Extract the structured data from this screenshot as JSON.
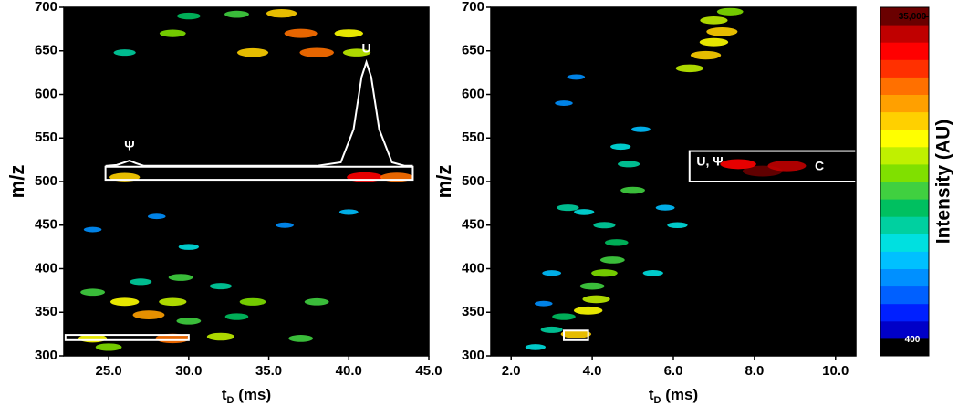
{
  "chart_data": [
    {
      "type": "scatter",
      "ylabel": "m/z",
      "xlabel": [
        "t",
        "D",
        " (ms)"
      ],
      "xlim": [
        22.2,
        45
      ],
      "ylim": [
        300,
        700
      ],
      "xticks": [
        {
          "value": 25,
          "label": "25.0"
        },
        {
          "value": 30,
          "label": "30.0"
        },
        {
          "value": 35,
          "label": "35.0"
        },
        {
          "value": 40,
          "label": "40.0"
        },
        {
          "value": 45,
          "label": "45.0"
        }
      ],
      "yticks": [
        300,
        350,
        400,
        450,
        500,
        550,
        600,
        650,
        700
      ],
      "x": [
        35.8,
        33,
        37,
        29,
        40,
        34,
        38,
        40.5,
        26,
        30,
        41,
        26,
        43,
        26,
        29,
        34,
        38,
        27.5,
        30,
        33,
        29,
        24,
        32,
        37,
        25,
        27,
        29.5,
        32,
        24,
        30,
        40,
        36,
        24,
        28
      ],
      "y": [
        693,
        692,
        670,
        670,
        670,
        648,
        648,
        648,
        648,
        690,
        505,
        505,
        505,
        362,
        362,
        362,
        362,
        347,
        340,
        345,
        320,
        320,
        322,
        320,
        310,
        385,
        390,
        380,
        373,
        425,
        465,
        450,
        445,
        460
      ],
      "values": [
        8000,
        3000,
        12000,
        4000,
        6000,
        9000,
        15000,
        5000,
        2000,
        2500,
        20000,
        8000,
        12000,
        6000,
        5000,
        4000,
        3000,
        10000,
        3000,
        2500,
        15000,
        6000,
        5000,
        3000,
        4000,
        2000,
        3000,
        2000,
        3000,
        1500,
        1200,
        1000,
        1000,
        1000
      ],
      "regions": [
        {
          "x": [
            24.8,
            44
          ],
          "y": [
            502,
            517
          ]
        },
        {
          "x": [
            22.3,
            30
          ],
          "y": [
            318,
            324
          ]
        }
      ],
      "trace": {
        "color": "#ffffff",
        "x": [
          24.8,
          25.5,
          26.0,
          26.3,
          26.7,
          27.2,
          30,
          38,
          39.5,
          40.3,
          40.8,
          41.1,
          41.4,
          41.9,
          42.7,
          43.5,
          44
        ],
        "values": [
          518,
          519,
          522,
          524,
          521,
          518,
          518,
          518,
          522,
          560,
          620,
          637,
          620,
          560,
          522,
          518,
          518
        ]
      },
      "annotations": [
        {
          "text": "Ψ",
          "x": 26.3,
          "y": 540
        },
        {
          "text": "U",
          "x": 41.1,
          "y": 652
        }
      ]
    },
    {
      "type": "scatter",
      "ylabel": "m/z",
      "xlabel": [
        "t",
        "D",
        " (ms)"
      ],
      "xlim": [
        1.5,
        10.5
      ],
      "ylim": [
        300,
        700
      ],
      "xticks": [
        {
          "value": 2,
          "label": "2.0"
        },
        {
          "value": 4,
          "label": "4.0"
        },
        {
          "value": 6,
          "label": "6.0"
        },
        {
          "value": 8,
          "label": "8.0"
        },
        {
          "value": 10,
          "label": "10.0"
        }
      ],
      "yticks": [
        300,
        350,
        400,
        450,
        500,
        550,
        600,
        650,
        700
      ],
      "x": [
        2.6,
        3.0,
        3.3,
        3.6,
        3.9,
        4.1,
        4.0,
        4.3,
        4.5,
        4.6,
        4.3,
        3.8,
        3.4,
        5.0,
        4.9,
        4.7,
        5.2,
        3.3,
        3.6,
        6.4,
        6.8,
        7.0,
        7.2,
        7.0,
        7.4,
        8.2,
        8.8,
        7.6,
        6.1,
        5.8,
        2.8,
        5.5,
        3.0
      ],
      "y": [
        310,
        330,
        345,
        325,
        352,
        365,
        380,
        395,
        410,
        430,
        450,
        465,
        470,
        490,
        520,
        540,
        560,
        590,
        620,
        630,
        645,
        660,
        672,
        685,
        695,
        512,
        518,
        520,
        450,
        470,
        360,
        395,
        395
      ],
      "values": [
        1500,
        2000,
        2500,
        8000,
        6000,
        5000,
        3000,
        4000,
        3000,
        2500,
        2000,
        1500,
        2000,
        3000,
        2000,
        1500,
        1200,
        1000,
        1000,
        5000,
        8000,
        6000,
        9000,
        5000,
        4000,
        38000,
        30000,
        20000,
        1500,
        1200,
        1000,
        1500,
        1200
      ],
      "regions": [
        {
          "x": [
            3.3,
            3.9
          ],
          "y": [
            318,
            329
          ]
        },
        {
          "x": [
            6.4,
            10.8
          ],
          "y": [
            500,
            535
          ]
        }
      ],
      "annotations": [
        {
          "text": "U, Ψ",
          "x": 6.9,
          "y": 522
        },
        {
          "text": "C",
          "x": 9.6,
          "y": 517
        }
      ]
    },
    {
      "type": "colorbar",
      "label": "Intensity (AU)",
      "log": true,
      "clim": [
        320,
        40000
      ],
      "ticks": [
        400,
        {
          "value": 35000,
          "label": "35,000"
        }
      ],
      "colormap": [
        "#000000",
        "#0000c8",
        "#0020ff",
        "#0060ff",
        "#0090ff",
        "#00c0ff",
        "#00e0e0",
        "#00d0a0",
        "#00c060",
        "#40d040",
        "#80e000",
        "#c0f000",
        "#ffff00",
        "#ffd000",
        "#ffa000",
        "#ff7000",
        "#ff3000",
        "#ff0000",
        "#c00000",
        "#6a0000"
      ]
    }
  ]
}
